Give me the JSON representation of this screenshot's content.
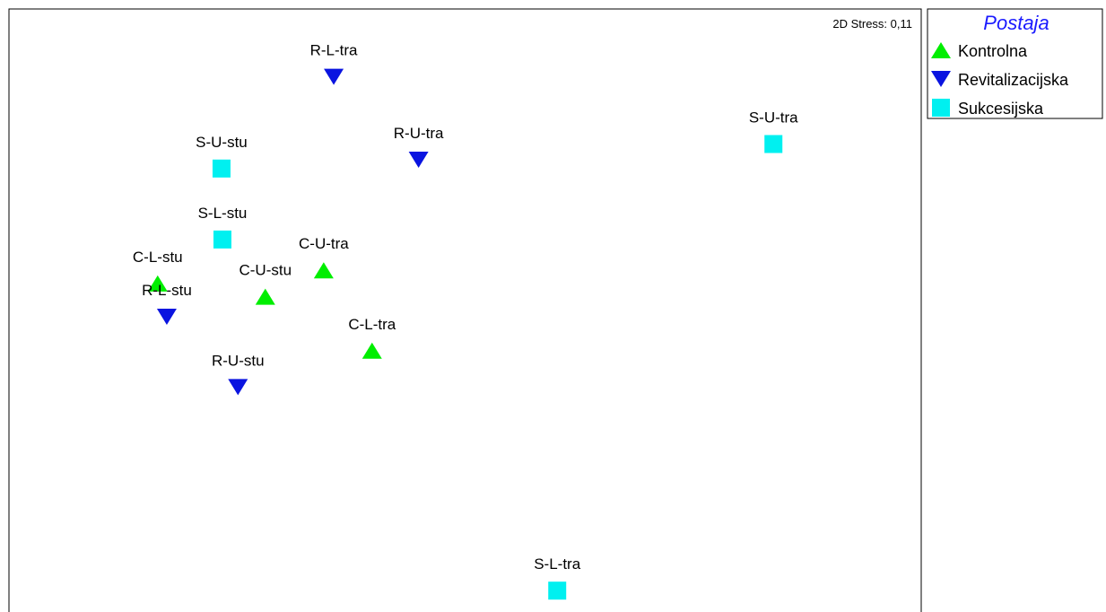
{
  "chart_data": {
    "type": "scatter",
    "title": "",
    "annotation": "2D Stress: 0,11",
    "legend": {
      "title": "Postaja",
      "placement": "top-right",
      "entries": [
        {
          "name": "Kontrolna",
          "marker": "triangle-up",
          "color": "#00ee00"
        },
        {
          "name": "Revitalizacijska",
          "marker": "triangle-down",
          "color": "#0a14e0"
        },
        {
          "name": "Sukcesijska",
          "marker": "square",
          "color": "#00f0f0"
        }
      ]
    },
    "xlim": [
      0,
      100
    ],
    "ylim": [
      0,
      100
    ],
    "points": [
      {
        "label": "R-L-tra",
        "series": "Revitalizacijska",
        "x": 35.6,
        "y": 89.2
      },
      {
        "label": "R-U-tra",
        "series": "Revitalizacijska",
        "x": 44.9,
        "y": 76.0
      },
      {
        "label": "S-U-tra",
        "series": "Sukcesijska",
        "x": 83.8,
        "y": 78.5
      },
      {
        "label": "S-U-stu",
        "series": "Sukcesijska",
        "x": 23.3,
        "y": 74.6
      },
      {
        "label": "S-L-stu",
        "series": "Sukcesijska",
        "x": 23.4,
        "y": 63.3
      },
      {
        "label": "C-U-tra",
        "series": "Kontrolna",
        "x": 34.5,
        "y": 58.4
      },
      {
        "label": "C-L-stu",
        "series": "Kontrolna",
        "x": 16.3,
        "y": 56.3
      },
      {
        "label": "C-U-stu",
        "series": "Kontrolna",
        "x": 28.1,
        "y": 54.2
      },
      {
        "label": "R-L-stu",
        "series": "Revitalizacijska",
        "x": 17.3,
        "y": 51.0
      },
      {
        "label": "C-L-tra",
        "series": "Kontrolna",
        "x": 39.8,
        "y": 45.6
      },
      {
        "label": "R-U-stu",
        "series": "Revitalizacijska",
        "x": 25.1,
        "y": 39.8
      },
      {
        "label": "S-L-tra",
        "series": "Sukcesijska",
        "x": 60.1,
        "y": 7.4
      }
    ]
  }
}
